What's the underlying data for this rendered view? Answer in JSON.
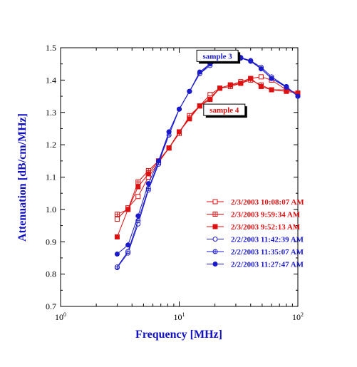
{
  "chart_data": {
    "type": "line",
    "title": "",
    "xlabel": "Frequency [MHz]",
    "ylabel": "Attenuation [dB/cm/MHz]",
    "xscale": "log",
    "xlim": [
      1,
      100
    ],
    "ylim": [
      0.7,
      1.5
    ],
    "x_ticks": [
      {
        "mant": "10",
        "exp": "0"
      },
      {
        "mant": "10",
        "exp": "1"
      },
      {
        "mant": "10",
        "exp": "2"
      }
    ],
    "y_ticks": [
      "0.7",
      "0.8",
      "0.9",
      "1.0",
      "1.1",
      "1.2",
      "1.3",
      "1.4",
      "1.5"
    ],
    "grid": false,
    "legend_position": "right",
    "annotations": [
      {
        "text": "sample 3",
        "color": "#1a1acc",
        "anchor": {
          "x": 21,
          "y": 1.475
        }
      },
      {
        "text": "sample 4",
        "color": "#dd1111",
        "anchor": {
          "x": 24,
          "y": 1.308
        }
      }
    ],
    "series": [
      {
        "name": "2/3/2003 10:08:07 AM",
        "color": "#dd1111",
        "marker": "square-open",
        "x": [
          3,
          3.7,
          4.5,
          5.5,
          6.7,
          8.2,
          10,
          12.2,
          14.9,
          18.2,
          22,
          27,
          33,
          40,
          49,
          60,
          80,
          100
        ],
        "y": [
          0.97,
          1.005,
          1.04,
          1.1,
          1.145,
          1.19,
          1.24,
          1.285,
          1.32,
          1.355,
          1.375,
          1.385,
          1.395,
          1.405,
          1.41,
          1.4,
          1.37,
          1.36
        ]
      },
      {
        "name": "2/3/2003 9:59:34 AM",
        "color": "#dd1111",
        "marker": "square-cross",
        "x": [
          3,
          3.7,
          4.5,
          5.5,
          6.7,
          8.2,
          10,
          12.2,
          14.9,
          18.2,
          22,
          27,
          33,
          40,
          49,
          60,
          80,
          100
        ],
        "y": [
          0.985,
          1.0,
          1.085,
          1.12,
          1.15,
          1.19,
          1.235,
          1.29,
          1.32,
          1.345,
          1.375,
          1.38,
          1.39,
          1.4,
          1.385,
          1.37,
          1.37,
          1.36
        ]
      },
      {
        "name": "2/3/2003 9:52:13 AM",
        "color": "#dd1111",
        "marker": "square-filled",
        "x": [
          3,
          3.7,
          4.5,
          5.5,
          6.7,
          8.2,
          10,
          12.2,
          14.9,
          18.2,
          22,
          27,
          33,
          40,
          49,
          60,
          80,
          100
        ],
        "y": [
          0.915,
          1.0,
          1.07,
          1.11,
          1.15,
          1.19,
          1.24,
          1.28,
          1.32,
          1.34,
          1.375,
          1.385,
          1.39,
          1.405,
          1.38,
          1.37,
          1.365,
          1.36
        ]
      },
      {
        "name": "2/2/2003 11:42:39 AM",
        "color": "#1a1acc",
        "marker": "circle-open",
        "x": [
          3,
          3.7,
          4.5,
          5.5,
          6.7,
          8.2,
          10,
          12.2,
          14.9,
          18.2,
          22,
          27,
          33,
          40,
          49,
          60,
          80,
          100
        ],
        "y": [
          0.82,
          0.865,
          0.955,
          1.06,
          1.14,
          1.24,
          1.31,
          1.365,
          1.42,
          1.445,
          1.465,
          1.47,
          1.468,
          1.46,
          1.44,
          1.41,
          1.38,
          1.35
        ]
      },
      {
        "name": "2/2/2003 11:35:07 AM",
        "color": "#1a1acc",
        "marker": "circle-cross",
        "x": [
          3,
          3.7,
          4.5,
          5.5,
          6.7,
          8.2,
          10,
          12.2,
          14.9,
          18.2,
          22,
          27,
          33,
          40,
          49,
          60,
          80,
          100
        ],
        "y": [
          0.822,
          0.87,
          0.965,
          1.065,
          1.145,
          1.23,
          1.31,
          1.365,
          1.42,
          1.45,
          1.468,
          1.472,
          1.468,
          1.458,
          1.435,
          1.405,
          1.378,
          1.35
        ]
      },
      {
        "name": "2/2/2003 11:27:47 AM",
        "color": "#1a1acc",
        "marker": "circle-filled",
        "x": [
          3,
          3.7,
          4.5,
          5.5,
          6.7,
          8.2,
          10,
          12.2,
          14.9,
          18.2,
          22,
          27,
          33,
          40,
          49,
          60,
          80,
          100
        ],
        "y": [
          0.862,
          0.89,
          0.98,
          1.08,
          1.15,
          1.24,
          1.31,
          1.365,
          1.425,
          1.45,
          1.468,
          1.47,
          1.47,
          1.46,
          1.435,
          1.405,
          1.38,
          1.35
        ]
      }
    ]
  }
}
